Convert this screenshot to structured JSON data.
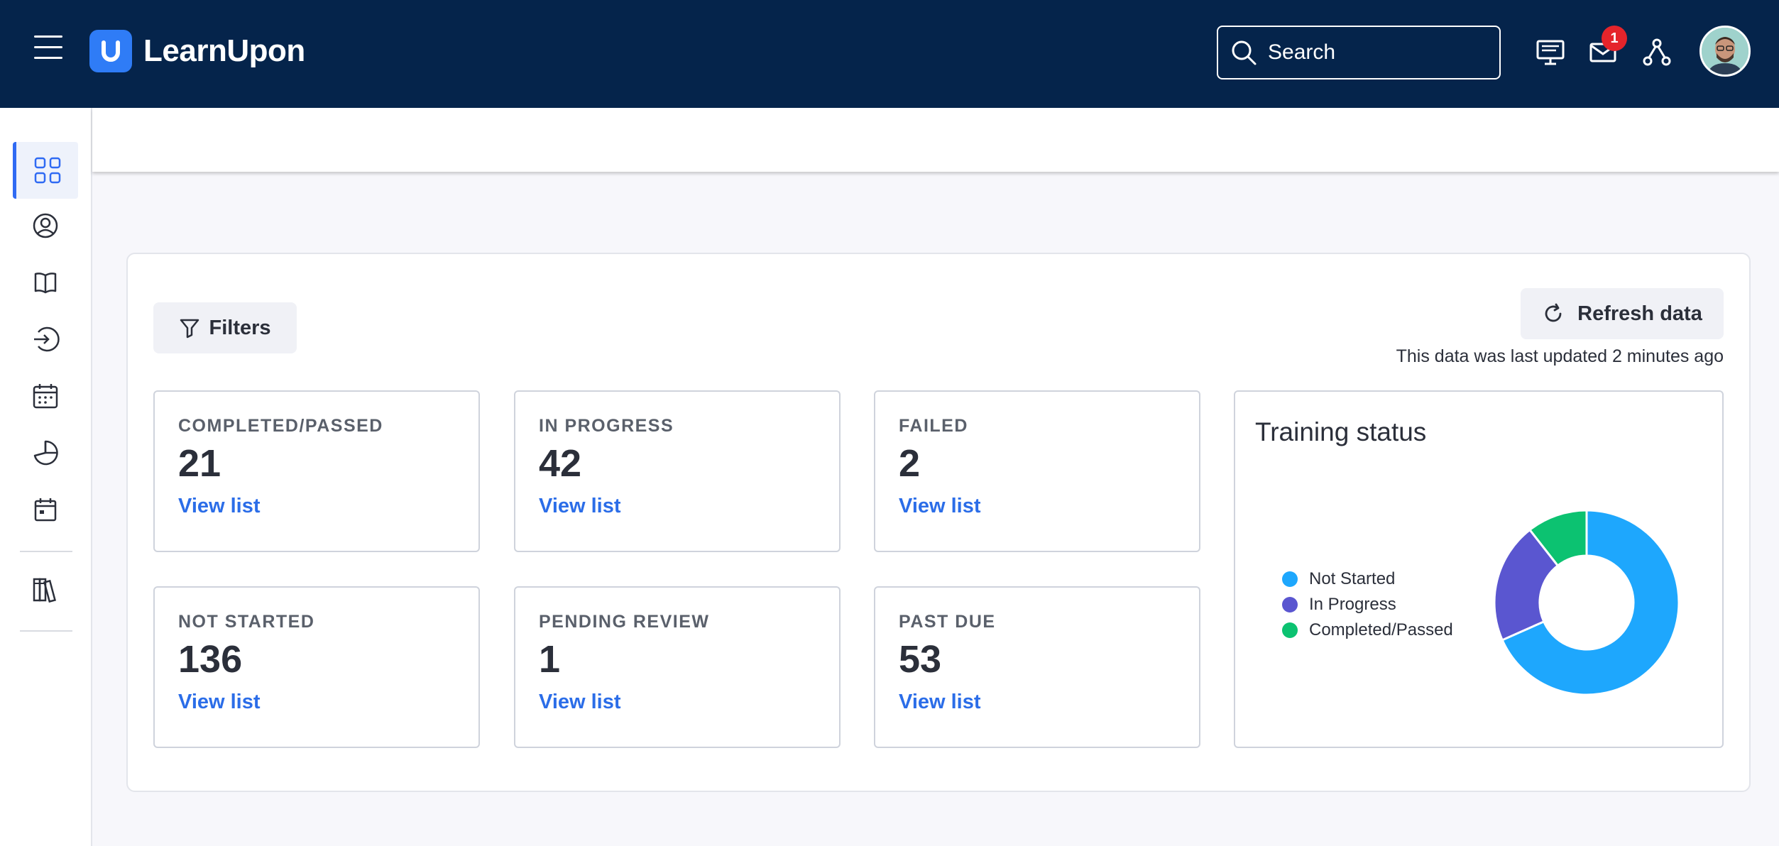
{
  "app": {
    "name": "LearnUpon"
  },
  "search": {
    "placeholder": "Search"
  },
  "notifications": {
    "count": "1"
  },
  "toolbar": {
    "filters_label": "Filters",
    "refresh_label": "Refresh data",
    "last_updated": "This data was last updated 2 minutes ago"
  },
  "cards": [
    {
      "label": "COMPLETED/PASSED",
      "value": "21",
      "link": "View list"
    },
    {
      "label": "IN PROGRESS",
      "value": "42",
      "link": "View list"
    },
    {
      "label": "FAILED",
      "value": "2",
      "link": "View list"
    },
    {
      "label": "NOT STARTED",
      "value": "136",
      "link": "View list"
    },
    {
      "label": "PENDING REVIEW",
      "value": "1",
      "link": "View list"
    },
    {
      "label": "PAST DUE",
      "value": "53",
      "link": "View list"
    }
  ],
  "sidebar_icons": [
    "dashboard-icon",
    "user-icon",
    "book-icon",
    "sign-in-icon",
    "calendar-icon",
    "pie-chart-icon",
    "event-icon",
    "library-icon"
  ],
  "colors": {
    "topbar": "#05244b",
    "accent": "#2f6af3",
    "not_started": "#1ea7fd",
    "in_progress": "#5a56d0",
    "completed": "#0cc271"
  },
  "chart_data": {
    "type": "pie",
    "title": "Training status",
    "categories": [
      "Not Started",
      "In Progress",
      "Completed/Passed"
    ],
    "values": [
      136,
      42,
      21
    ],
    "colors": [
      "#1ea7fd",
      "#5a56d0",
      "#0cc271"
    ],
    "donut": true,
    "legend_position": "left"
  }
}
